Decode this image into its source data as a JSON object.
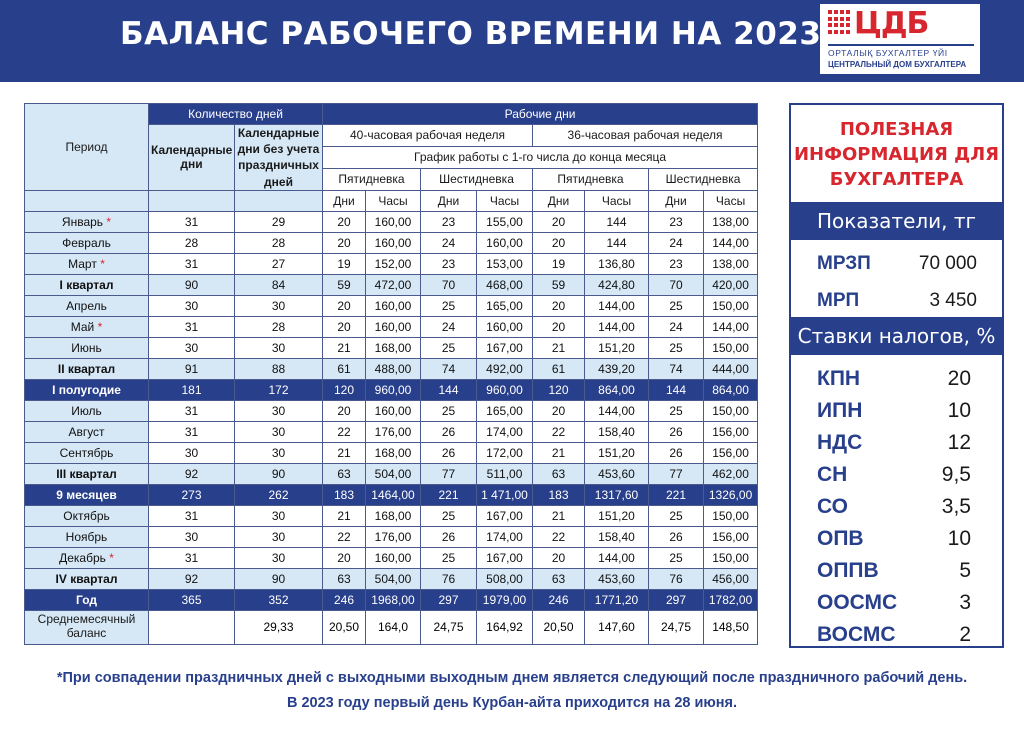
{
  "header": {
    "title": "БАЛАНС РАБОЧЕГО ВРЕМЕНИ НА 2023 ГОД",
    "logo_mark": "ЦДБ",
    "logo_sub1": "ОРТАЛЫҚ БУХГАЛТЕР ҮЙІ",
    "logo_sub2": "ЦЕНТРАЛЬНЫЙ ДОМ БУХГАЛТЕРА"
  },
  "table": {
    "h_period": "Период",
    "h_days_count": "Количество дней",
    "h_work_days": "Рабочие дни",
    "h_calendar": "Календарные дни",
    "h_calendar_no_hol": "Календарные дни без учета праздничных дней",
    "h_week40": "40-часовая рабочая неделя",
    "h_week36": "36-часовая рабочая неделя",
    "h_schedule": "График работы с 1-го числа до конца месяца",
    "h_five": "Пятидневка",
    "h_six": "Шестидневка",
    "h_days": "Дни",
    "h_hours": "Часы",
    "star": "*",
    "rows": [
      {
        "name": "Январь",
        "star": true,
        "type": "row",
        "v": [
          "31",
          "29",
          "20",
          "160,00",
          "23",
          "155,00",
          "20",
          "144",
          "23",
          "138,00"
        ]
      },
      {
        "name": "Февраль",
        "star": false,
        "type": "row",
        "v": [
          "28",
          "28",
          "20",
          "160,00",
          "24",
          "160,00",
          "20",
          "144",
          "24",
          "144,00"
        ]
      },
      {
        "name": "Март",
        "star": true,
        "type": "row",
        "v": [
          "31",
          "27",
          "19",
          "152,00",
          "23",
          "153,00",
          "19",
          "136,80",
          "23",
          "138,00"
        ]
      },
      {
        "name": "I квартал",
        "star": false,
        "type": "quarter",
        "v": [
          "90",
          "84",
          "59",
          "472,00",
          "70",
          "468,00",
          "59",
          "424,80",
          "70",
          "420,00"
        ]
      },
      {
        "name": "Апрель",
        "star": false,
        "type": "row",
        "v": [
          "30",
          "30",
          "20",
          "160,00",
          "25",
          "165,00",
          "20",
          "144,00",
          "25",
          "150,00"
        ]
      },
      {
        "name": "Май",
        "star": true,
        "type": "row",
        "v": [
          "31",
          "28",
          "20",
          "160,00",
          "24",
          "160,00",
          "20",
          "144,00",
          "24",
          "144,00"
        ]
      },
      {
        "name": "Июнь",
        "star": false,
        "type": "row",
        "v": [
          "30",
          "30",
          "21",
          "168,00",
          "25",
          "167,00",
          "21",
          "151,20",
          "25",
          "150,00"
        ]
      },
      {
        "name": "II квартал",
        "star": false,
        "type": "quarter",
        "v": [
          "91",
          "88",
          "61",
          "488,00",
          "74",
          "492,00",
          "61",
          "439,20",
          "74",
          "444,00"
        ]
      },
      {
        "name": "I полугодие",
        "star": false,
        "type": "total",
        "v": [
          "181",
          "172",
          "120",
          "960,00",
          "144",
          "960,00",
          "120",
          "864,00",
          "144",
          "864,00"
        ]
      },
      {
        "name": "Июль",
        "star": false,
        "type": "row",
        "v": [
          "31",
          "30",
          "20",
          "160,00",
          "25",
          "165,00",
          "20",
          "144,00",
          "25",
          "150,00"
        ]
      },
      {
        "name": "Август",
        "star": false,
        "type": "row",
        "v": [
          "31",
          "30",
          "22",
          "176,00",
          "26",
          "174,00",
          "22",
          "158,40",
          "26",
          "156,00"
        ]
      },
      {
        "name": "Сентябрь",
        "star": false,
        "type": "row",
        "v": [
          "30",
          "30",
          "21",
          "168,00",
          "26",
          "172,00",
          "21",
          "151,20",
          "26",
          "156,00"
        ]
      },
      {
        "name": "III квартал",
        "star": false,
        "type": "quarter",
        "v": [
          "92",
          "90",
          "63",
          "504,00",
          "77",
          "511,00",
          "63",
          "453,60",
          "77",
          "462,00"
        ]
      },
      {
        "name": "9 месяцев",
        "star": false,
        "type": "total",
        "v": [
          "273",
          "262",
          "183",
          "1464,00",
          "221",
          "1 471,00",
          "183",
          "1317,60",
          "221",
          "1326,00"
        ]
      },
      {
        "name": "Октябрь",
        "star": false,
        "type": "row",
        "v": [
          "31",
          "30",
          "21",
          "168,00",
          "25",
          "167,00",
          "21",
          "151,20",
          "25",
          "150,00"
        ]
      },
      {
        "name": "Ноябрь",
        "star": false,
        "type": "row",
        "v": [
          "30",
          "30",
          "22",
          "176,00",
          "26",
          "174,00",
          "22",
          "158,40",
          "26",
          "156,00"
        ]
      },
      {
        "name": "Декабрь",
        "star": true,
        "type": "row",
        "v": [
          "31",
          "30",
          "20",
          "160,00",
          "25",
          "167,00",
          "20",
          "144,00",
          "25",
          "150,00"
        ]
      },
      {
        "name": "IV квартал",
        "star": false,
        "type": "quarter",
        "v": [
          "92",
          "90",
          "63",
          "504,00",
          "76",
          "508,00",
          "63",
          "453,60",
          "76",
          "456,00"
        ]
      },
      {
        "name": "Год",
        "star": false,
        "type": "total",
        "v": [
          "365",
          "352",
          "246",
          "1968,00",
          "297",
          "1979,00",
          "246",
          "1771,20",
          "297",
          "1782,00"
        ]
      },
      {
        "name": "Среднемесячный баланс",
        "star": false,
        "type": "avg",
        "v": [
          "",
          "29,33",
          "20,50",
          "164,0",
          "24,75",
          "164,92",
          "20,50",
          "147,60",
          "24,75",
          "148,50"
        ]
      }
    ]
  },
  "side": {
    "info_title": "ПОЛЕЗНАЯ ИНФОРМАЦИЯ ДЛЯ БУХГАЛТЕРА",
    "indicators_title": "Показатели, тг",
    "indicators": [
      {
        "label": "МРЗП",
        "value": "70 000"
      },
      {
        "label": "МРП",
        "value": "3 450"
      }
    ],
    "rates_title": "Ставки налогов, %",
    "rates": [
      {
        "label": "КПН",
        "value": "20"
      },
      {
        "label": "ИПН",
        "value": "10"
      },
      {
        "label": "НДС",
        "value": "12"
      },
      {
        "label": "СН",
        "value": "9,5"
      },
      {
        "label": "СО",
        "value": "3,5"
      },
      {
        "label": "ОПВ",
        "value": "10"
      },
      {
        "label": "ОППВ",
        "value": "5"
      },
      {
        "label": "ООСМС",
        "value": "3"
      },
      {
        "label": "ВОСМС",
        "value": "2"
      }
    ]
  },
  "footer": {
    "note1": "*При совпадении праздничных дней с выходными выходным днем является следующий после праздничного рабочий день.",
    "note2": "В 2023 году первый день Курбан-айта приходится на 28 июня."
  },
  "colors": {
    "primary": "#283f8c",
    "accent": "#d7262e",
    "light_row": "#d6e8f6"
  }
}
